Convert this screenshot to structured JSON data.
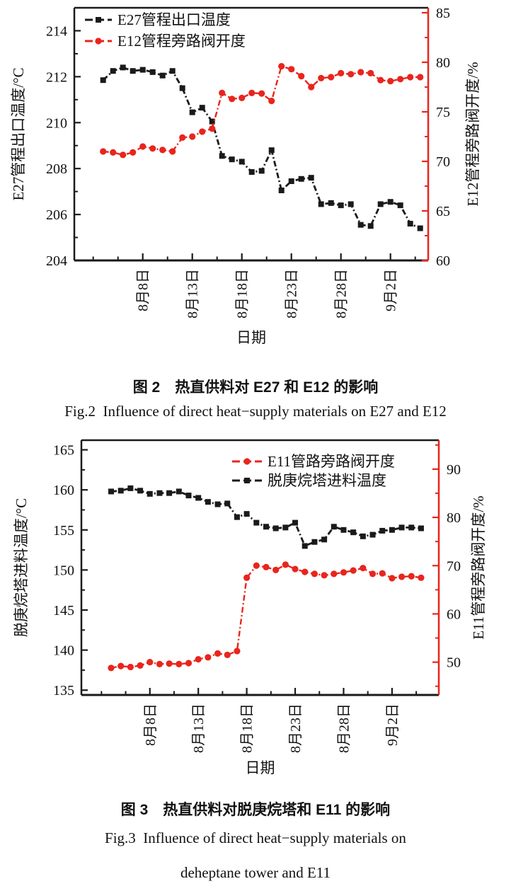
{
  "page": {
    "background": "#ffffff",
    "text_color": "#111111"
  },
  "figure2": {
    "caption_zh": "图 2　热直供料对 E27 和 E12 的影响",
    "caption_en": "Fig.2  Influence of direct heat−supply materials on E27 and E12"
  },
  "figure3": {
    "caption_zh": "图 3　热直供料对脱庚烷塔和 E11 的影响",
    "caption_en_line1": "Fig.3  Influence of direct heat−supply materials on",
    "caption_en_line2": "deheptane tower and E11"
  },
  "chart_data": [
    {
      "type": "line",
      "xlabel": "日期",
      "x_tick_labels": [
        "8月8日",
        "8月13日",
        "8月18日",
        "8月23日",
        "8月28日",
        "9月2日"
      ],
      "x_tick_indices": [
        4,
        9,
        14,
        19,
        24,
        29
      ],
      "x_minor_tick_indices": [
        -1,
        1.5,
        6.5,
        11.5,
        16.5,
        21.5,
        26.5,
        31.5
      ],
      "grid": false,
      "legend_position": "top-left",
      "left_axis": {
        "label": "E27管程出口温度/°C",
        "ticks": [
          204,
          206,
          208,
          210,
          212,
          214
        ],
        "minor_ticks": [
          205,
          207,
          209,
          211,
          213
        ],
        "range": [
          204,
          215
        ],
        "color": "#1a1a1a"
      },
      "right_axis": {
        "label": "E12管程旁路阀开度/%",
        "ticks": [
          60,
          65,
          70,
          75,
          80,
          85
        ],
        "minor_ticks": [
          62.5,
          67.5,
          72.5,
          77.5,
          82.5
        ],
        "range": [
          60,
          85.5
        ],
        "color": "#e8251d"
      },
      "series": [
        {
          "name": "E27管程出口温度",
          "axis": "left",
          "color": "#1a1a1a",
          "marker": "square",
          "values": [
            211.85,
            212.25,
            212.4,
            212.25,
            212.3,
            212.2,
            212.05,
            212.25,
            211.5,
            210.45,
            210.65,
            210.05,
            208.55,
            208.4,
            208.3,
            207.85,
            207.9,
            208.8,
            207.05,
            207.45,
            207.55,
            207.6,
            206.45,
            206.5,
            206.4,
            206.45,
            205.55,
            205.5,
            206.45,
            206.55,
            206.4,
            205.6,
            205.4
          ]
        },
        {
          "name": "E12管程旁路阀开度",
          "axis": "right",
          "color": "#e8251d",
          "marker": "circle",
          "values": [
            71.0,
            70.9,
            70.65,
            70.9,
            71.5,
            71.3,
            71.15,
            71.0,
            72.4,
            72.5,
            73.0,
            73.3,
            76.9,
            76.3,
            76.4,
            76.9,
            76.85,
            76.1,
            79.6,
            79.3,
            78.6,
            77.5,
            78.4,
            78.5,
            78.9,
            78.8,
            79.0,
            78.9,
            78.2,
            78.1,
            78.3,
            78.5,
            78.5
          ]
        }
      ]
    },
    {
      "type": "line",
      "xlabel": "日期",
      "x_tick_labels": [
        "8月8日",
        "8月13日",
        "8月18日",
        "8月23日",
        "8月28日",
        "9月2日"
      ],
      "x_tick_indices": [
        4,
        9,
        14,
        19,
        24,
        29
      ],
      "x_minor_tick_indices": [
        -1,
        1.5,
        6.5,
        11.5,
        16.5,
        21.5,
        26.5,
        31.5
      ],
      "grid": false,
      "legend_position": "top-right",
      "left_axis": {
        "label": "脱庚烷塔进料温度/°C",
        "ticks": [
          135,
          140,
          145,
          150,
          155,
          160,
          165
        ],
        "minor_ticks": [
          137.5,
          142.5,
          147.5,
          152.5,
          157.5,
          162.5
        ],
        "range": [
          134.4,
          166.2
        ],
        "color": "#1a1a1a"
      },
      "right_axis": {
        "label": "E11管程旁路阀开度/%",
        "ticks": [
          50,
          60,
          70,
          80,
          90
        ],
        "minor_ticks": [
          45,
          55,
          65,
          75,
          85,
          95
        ],
        "range": [
          43.2,
          96
        ],
        "color": "#e8251d"
      },
      "series": [
        {
          "name": "E11管路旁路阀开度",
          "axis": "right",
          "color": "#e8251d",
          "marker": "circle",
          "values": [
            48.8,
            49.2,
            49.0,
            49.3,
            50.0,
            49.6,
            49.7,
            49.6,
            49.8,
            50.6,
            51.0,
            51.8,
            51.5,
            52.3,
            67.5,
            70.0,
            69.7,
            69.1,
            70.2,
            69.3,
            68.7,
            68.3,
            68.0,
            68.3,
            68.6,
            69.0,
            69.5,
            68.3,
            68.4,
            67.4,
            67.7,
            67.8,
            67.5
          ]
        },
        {
          "name": "脱庚烷塔进料温度",
          "axis": "left",
          "color": "#1a1a1a",
          "marker": "square",
          "values": [
            159.8,
            159.9,
            160.2,
            159.9,
            159.5,
            159.6,
            159.6,
            159.8,
            159.3,
            159.0,
            158.5,
            158.2,
            158.3,
            156.6,
            157.0,
            155.9,
            155.4,
            155.2,
            155.3,
            155.9,
            153.0,
            153.5,
            153.8,
            155.4,
            155.0,
            154.7,
            154.2,
            154.4,
            154.9,
            155.0,
            155.3,
            155.3,
            155.2
          ]
        }
      ]
    }
  ]
}
